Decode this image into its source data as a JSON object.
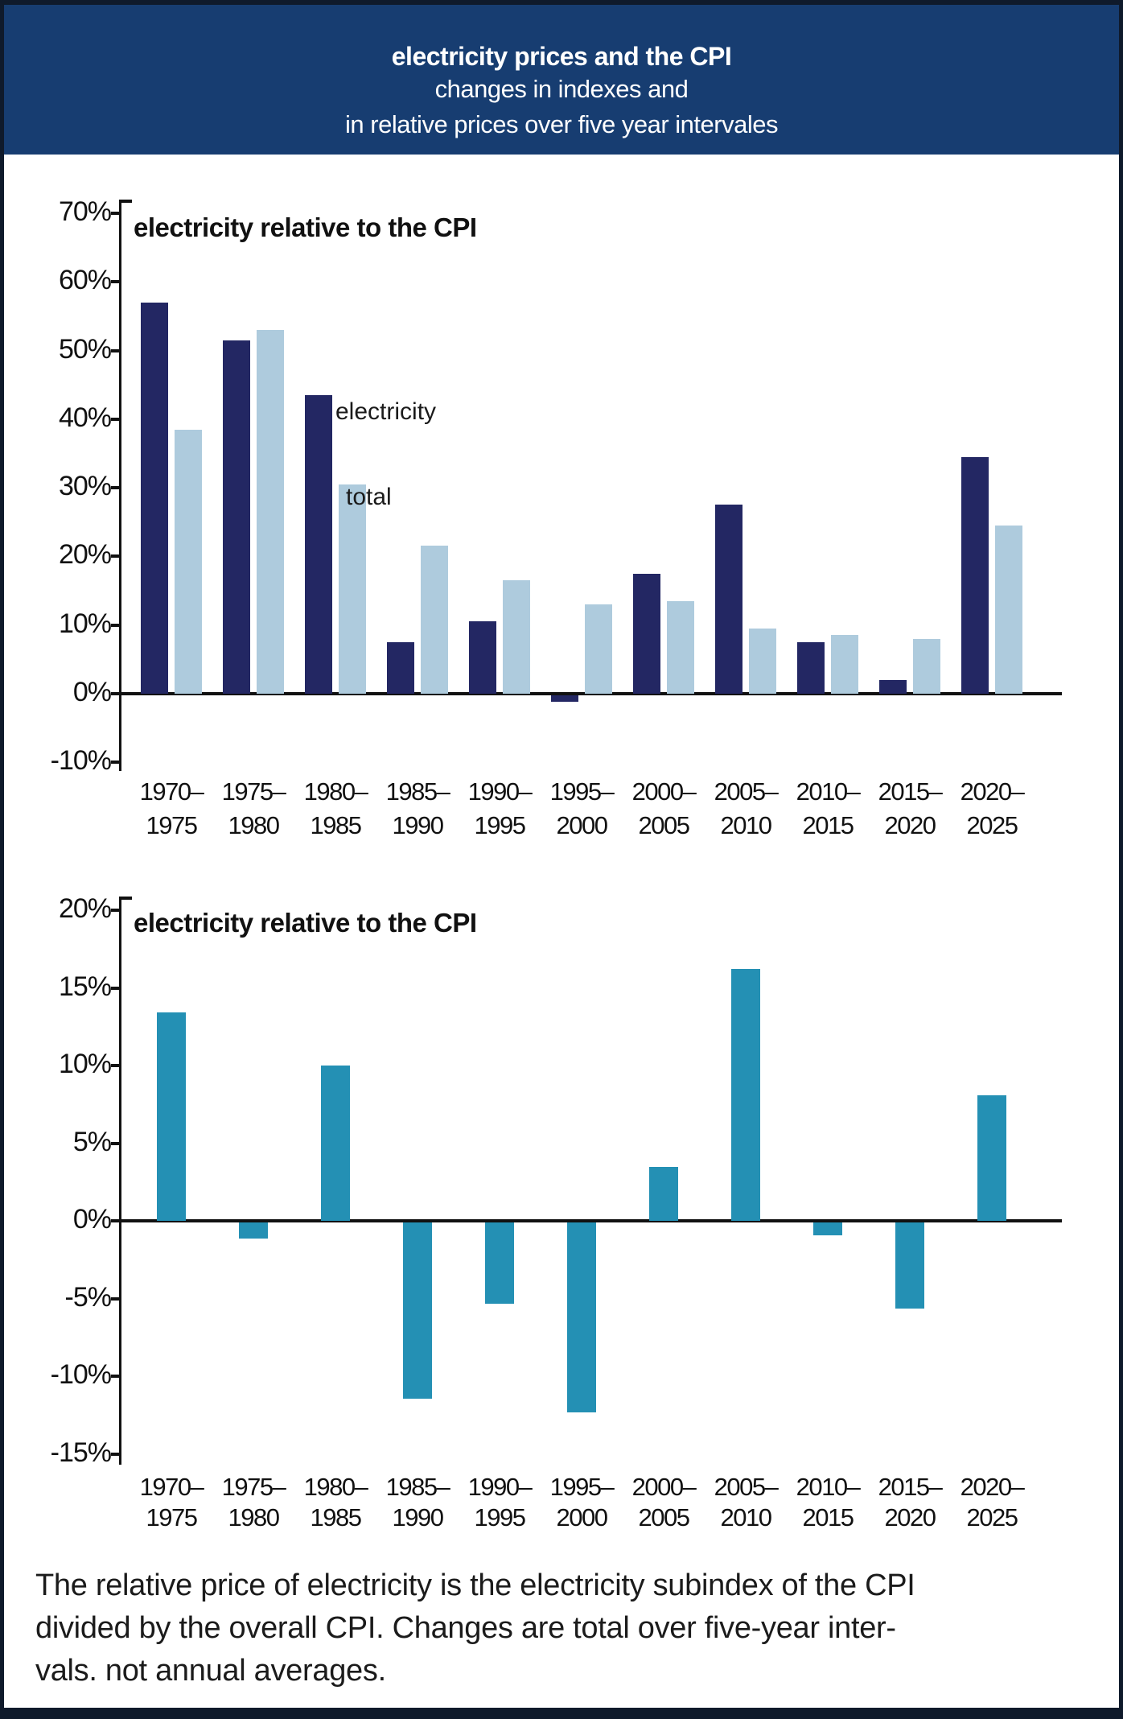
{
  "header": {
    "title": "electricity prices and the CPI",
    "subtitle1": "changes in indexes and",
    "subtitle2": "in relative prices over five year intervales",
    "bg_color": "#173d71",
    "text_color": "#ffffff"
  },
  "chart_data": [
    {
      "type": "bar",
      "title": "electricity relative to the CPI",
      "categories": [
        {
          "line1": "1970–",
          "line2": "1975"
        },
        {
          "line1": "1975–",
          "line2": "1980"
        },
        {
          "line1": "1980–",
          "line2": "1985"
        },
        {
          "line1": "1985–",
          "line2": "1990"
        },
        {
          "line1": "1990–",
          "line2": "1995"
        },
        {
          "line1": "1995–",
          "line2": "2000"
        },
        {
          "line1": "2000–",
          "line2": "2005"
        },
        {
          "line1": "2005–",
          "line2": "2010"
        },
        {
          "line1": "2010–",
          "line2": "2015"
        },
        {
          "line1": "2015–",
          "line2": "2020"
        },
        {
          "line1": "2020–",
          "line2": "2025"
        }
      ],
      "series": [
        {
          "name": "electricity",
          "color": "#232763",
          "values": [
            57,
            51.5,
            43.5,
            7.5,
            10.5,
            -1,
            17.5,
            27.5,
            7.5,
            2,
            34.5
          ]
        },
        {
          "name": "total",
          "color": "#aecbdd",
          "values": [
            38.5,
            53,
            30.5,
            21.5,
            16.5,
            13,
            13.5,
            9.5,
            8.5,
            8,
            24.5
          ]
        }
      ],
      "annotations": [
        {
          "text": "electricity",
          "x": 417,
          "y": 495
        },
        {
          "text": "total",
          "x": 430,
          "y": 601
        }
      ],
      "xlabel": "",
      "ylabel": "",
      "ylim": [
        -10,
        70
      ],
      "ystep": 10,
      "tick_suffix": "%",
      "grid": false,
      "legend_position": "inline-annotations"
    },
    {
      "type": "bar",
      "title": "electricity relative to the CPI",
      "categories": [
        {
          "line1": "1970–",
          "line2": "1975"
        },
        {
          "line1": "1975–",
          "line2": "1980"
        },
        {
          "line1": "1980–",
          "line2": "1985"
        },
        {
          "line1": "1985–",
          "line2": "1990"
        },
        {
          "line1": "1990–",
          "line2": "1995"
        },
        {
          "line1": "1995–",
          "line2": "2000"
        },
        {
          "line1": "2000–",
          "line2": "2005"
        },
        {
          "line1": "2005–",
          "line2": "2010"
        },
        {
          "line1": "2010–",
          "line2": "2015"
        },
        {
          "line1": "2015–",
          "line2": "2020"
        },
        {
          "line1": "2020–",
          "line2": "2025"
        }
      ],
      "series": [
        {
          "name": "electricity relative to the CPI",
          "color": "#2490b4",
          "values": [
            13.4,
            -1,
            10,
            -11.3,
            -5.2,
            -12.2,
            3.5,
            16.2,
            -0.8,
            -5.5,
            8.1
          ]
        }
      ],
      "annotations": [],
      "xlabel": "",
      "ylabel": "",
      "ylim": [
        -15,
        20
      ],
      "ystep": 5,
      "tick_suffix": "%",
      "grid": false,
      "legend_position": "none"
    }
  ],
  "footer": {
    "lines": [
      "The relative price of electricity is the electricity subindex of the CPI",
      "divided by the overall CPI. Changes are total over five-year inter-",
      "vals. not annual averages."
    ]
  }
}
